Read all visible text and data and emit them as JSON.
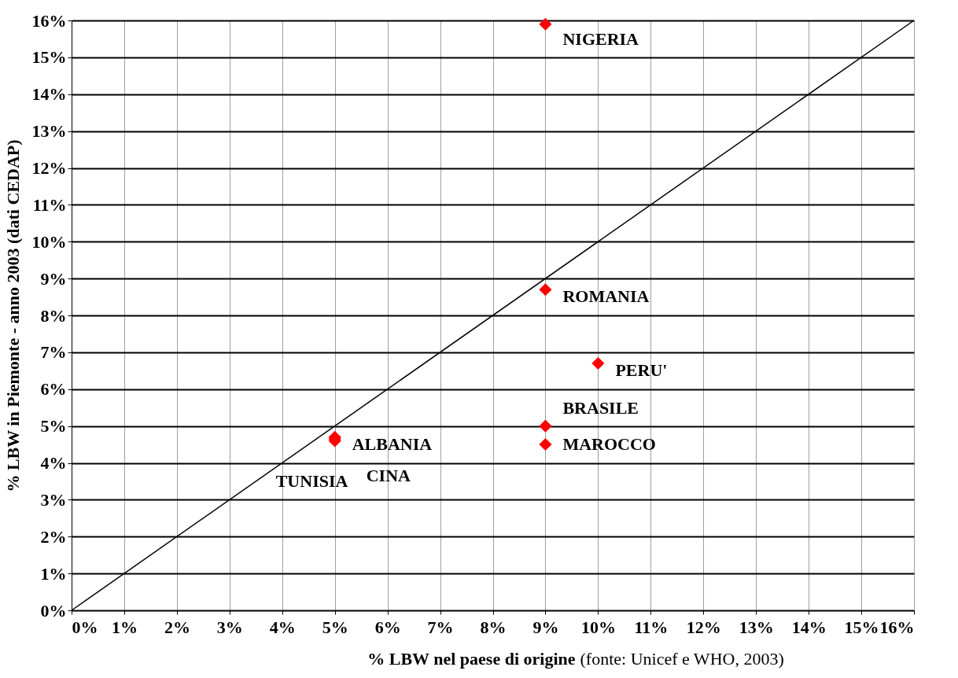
{
  "chart_data": {
    "type": "scatter",
    "xlabel": "% LBW nel paese di origine",
    "ylabel": "% LBW in Piemonte - anno 2003 (dati CEDAP)",
    "series": [
      {
        "color": "#ff0000",
        "marker": "diamond",
        "x": [
          9,
          9,
          10,
          9,
          9,
          5,
          5,
          5
        ],
        "values": [
          15.9,
          8.7,
          6.7,
          5.0,
          4.5,
          4.7,
          4.65,
          4.6
        ]
      },
      {
        "type": "line",
        "color": "#000000",
        "marker": "none",
        "x": [
          0,
          16
        ],
        "values": [
          0,
          16
        ]
      }
    ],
    "annotations": [
      {
        "text": "NIGERIA",
        "x": 9,
        "y": 15.9
      },
      {
        "text": "ROMANIA",
        "x": 9,
        "y": 8.7
      },
      {
        "text": "PERU'",
        "x": 10,
        "y": 6.7
      },
      {
        "text": "BRASILE",
        "x": 9,
        "y": 5.0
      },
      {
        "text": "MAROCCO",
        "x": 9,
        "y": 4.5
      },
      {
        "text": "ALBANIA",
        "x": 5,
        "y": 4.7
      },
      {
        "text": "TUNISIA",
        "x": 5,
        "y": 4.65
      },
      {
        "text": "CINA",
        "x": 5,
        "y": 4.6
      },
      "(fonte: Unicef e WHO, 2003)"
    ],
    "xlim": [
      0,
      16
    ],
    "ylim": [
      0,
      16
    ],
    "xticks": [
      {
        "value": 0,
        "label": "0%"
      },
      {
        "value": 1,
        "label": "1%"
      },
      {
        "value": 2,
        "label": "2%"
      },
      {
        "value": 3,
        "label": "3%"
      },
      {
        "value": 4,
        "label": "4%"
      },
      {
        "value": 5,
        "label": "5%"
      },
      {
        "value": 6,
        "label": "6%"
      },
      {
        "value": 7,
        "label": "7%"
      },
      {
        "value": 8,
        "label": "8%"
      },
      {
        "value": 9,
        "label": "9%"
      },
      {
        "value": 10,
        "label": "10%"
      },
      {
        "value": 11,
        "label": "11%"
      },
      {
        "value": 12,
        "label": "12%"
      },
      {
        "value": 13,
        "label": "13%"
      },
      {
        "value": 14,
        "label": "14%"
      },
      {
        "value": 15,
        "label": "15%"
      },
      {
        "value": 16,
        "label": "16%"
      }
    ],
    "yticks": [
      {
        "value": 0,
        "label": "0%"
      },
      {
        "value": 1,
        "label": "1%"
      },
      {
        "value": 2,
        "label": "2%"
      },
      {
        "value": 3,
        "label": "3%"
      },
      {
        "value": 4,
        "label": "4%"
      },
      {
        "value": 5,
        "label": "5%"
      },
      {
        "value": 6,
        "label": "6%"
      },
      {
        "value": 7,
        "label": "7%"
      },
      {
        "value": 8,
        "label": "8%"
      },
      {
        "value": 9,
        "label": "9%"
      },
      {
        "value": 10,
        "label": "10%"
      },
      {
        "value": 11,
        "label": "11%"
      },
      {
        "value": 12,
        "label": "12%"
      },
      {
        "value": 13,
        "label": "13%"
      },
      {
        "value": 14,
        "label": "14%"
      },
      {
        "value": 15,
        "label": "15%"
      },
      {
        "value": 16,
        "label": "16%"
      }
    ],
    "grid": true
  }
}
